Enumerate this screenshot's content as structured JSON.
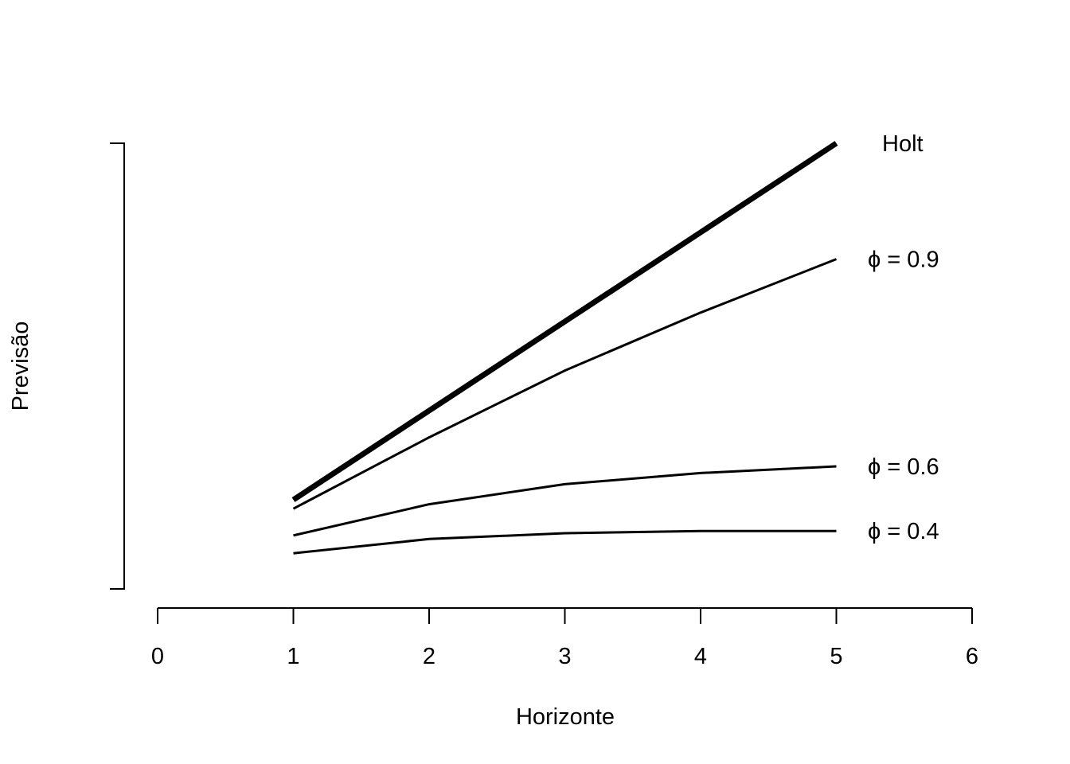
{
  "chart_data": {
    "type": "line",
    "title": "",
    "xlabel": "Horizonte",
    "ylabel": "Previsão",
    "xlim": [
      0,
      6
    ],
    "ylim": [
      0,
      1
    ],
    "x_ticks": [
      "0",
      "1",
      "2",
      "3",
      "4",
      "5",
      "6"
    ],
    "y_ticks": [],
    "grid": false,
    "legend": "none",
    "x": [
      1,
      2,
      3,
      4,
      5
    ],
    "series": [
      {
        "name": "Holt",
        "values": [
          0.2,
          0.4,
          0.6,
          0.8,
          1.0
        ],
        "weight": "bold"
      },
      {
        "name": "ϕ = 0.9",
        "values": [
          0.18,
          0.34,
          0.49,
          0.62,
          0.74
        ],
        "weight": "normal"
      },
      {
        "name": "ϕ = 0.6",
        "values": [
          0.12,
          0.19,
          0.235,
          0.26,
          0.275
        ],
        "weight": "normal"
      },
      {
        "name": "ϕ = 0.4",
        "values": [
          0.08,
          0.112,
          0.125,
          0.13,
          0.13
        ],
        "weight": "normal"
      }
    ]
  }
}
